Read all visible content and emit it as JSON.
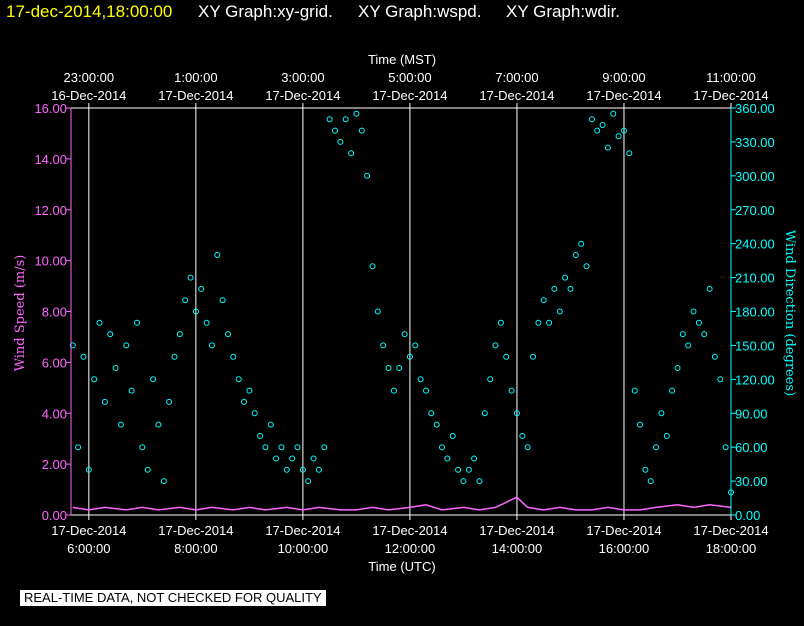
{
  "header": {
    "timestamp": "17-dec-2014,18:00:00",
    "titles": [
      "XY Graph:xy-grid.",
      "XY Graph:wspd.",
      "XY Graph:wdir."
    ]
  },
  "notice": "REAL-TIME DATA, NOT CHECKED FOR QUALITY",
  "chart_data": {
    "type": "scatter",
    "top_axis": {
      "title": "Time (MST)",
      "ticks": [
        {
          "time": "23:00:00",
          "date": "16-Dec-2014"
        },
        {
          "time": "1:00:00",
          "date": "17-Dec-2014"
        },
        {
          "time": "3:00:00",
          "date": "17-Dec-2014"
        },
        {
          "time": "5:00:00",
          "date": "17-Dec-2014"
        },
        {
          "time": "7:00:00",
          "date": "17-Dec-2014"
        },
        {
          "time": "9:00:00",
          "date": "17-Dec-2014"
        },
        {
          "time": "11:00:00",
          "date": "17-Dec-2014"
        }
      ]
    },
    "bottom_axis": {
      "title": "Time (UTC)",
      "ticks": [
        {
          "date": "17-Dec-2014",
          "time": "6:00:00"
        },
        {
          "date": "17-Dec-2014",
          "time": "8:00:00"
        },
        {
          "date": "17-Dec-2014",
          "time": "10:00:00"
        },
        {
          "date": "17-Dec-2014",
          "time": "12:00:00"
        },
        {
          "date": "17-Dec-2014",
          "time": "14:00:00"
        },
        {
          "date": "17-Dec-2014",
          "time": "16:00:00"
        },
        {
          "date": "17-Dec-2014",
          "time": "18:00:00"
        }
      ],
      "xlim": [
        "2014-12-17 05:40 UTC",
        "2014-12-17 18:00 UTC"
      ]
    },
    "left_axis": {
      "title": "Wind Speed (m/s)",
      "ylim": [
        0,
        16
      ],
      "ticks": [
        "0.00",
        "2.00",
        "4.00",
        "6.00",
        "8.00",
        "10.00",
        "12.00",
        "14.00",
        "16.00"
      ],
      "color": "#ff66ff"
    },
    "right_axis": {
      "title": "Wind Direction (degrees)",
      "ylim": [
        0,
        360
      ],
      "ticks": [
        "0.00",
        "30.00",
        "60.00",
        "90.00",
        "120.00",
        "150.00",
        "180.00",
        "210.00",
        "240.00",
        "270.00",
        "300.00",
        "330.00",
        "360.00"
      ],
      "color": "#00ffff"
    },
    "grid": true,
    "series": [
      {
        "color": "#ff66ff",
        "axis": "left",
        "style": "line",
        "points": [
          [
            5.7,
            0.3
          ],
          [
            6.0,
            0.2
          ],
          [
            6.3,
            0.3
          ],
          [
            6.7,
            0.2
          ],
          [
            7.0,
            0.3
          ],
          [
            7.3,
            0.2
          ],
          [
            7.7,
            0.3
          ],
          [
            8.0,
            0.2
          ],
          [
            8.3,
            0.3
          ],
          [
            8.7,
            0.2
          ],
          [
            9.0,
            0.3
          ],
          [
            9.3,
            0.2
          ],
          [
            9.7,
            0.3
          ],
          [
            10.0,
            0.2
          ],
          [
            10.3,
            0.3
          ],
          [
            10.7,
            0.2
          ],
          [
            11.0,
            0.2
          ],
          [
            11.3,
            0.3
          ],
          [
            11.6,
            0.2
          ],
          [
            12.0,
            0.3
          ],
          [
            12.3,
            0.4
          ],
          [
            12.6,
            0.2
          ],
          [
            13.0,
            0.3
          ],
          [
            13.3,
            0.2
          ],
          [
            13.6,
            0.3
          ],
          [
            13.8,
            0.5
          ],
          [
            14.0,
            0.7
          ],
          [
            14.2,
            0.3
          ],
          [
            14.5,
            0.2
          ],
          [
            14.8,
            0.3
          ],
          [
            15.1,
            0.2
          ],
          [
            15.4,
            0.2
          ],
          [
            15.7,
            0.3
          ],
          [
            16.0,
            0.2
          ],
          [
            16.3,
            0.2
          ],
          [
            16.6,
            0.3
          ],
          [
            17.0,
            0.4
          ],
          [
            17.3,
            0.3
          ],
          [
            17.6,
            0.4
          ],
          [
            18.0,
            0.3
          ]
        ]
      },
      {
        "color": "#00ffff",
        "axis": "right",
        "style": "markers",
        "points": [
          [
            5.7,
            150
          ],
          [
            5.8,
            60
          ],
          [
            5.9,
            140
          ],
          [
            6.0,
            40
          ],
          [
            6.1,
            120
          ],
          [
            6.2,
            170
          ],
          [
            6.3,
            100
          ],
          [
            6.4,
            160
          ],
          [
            6.5,
            130
          ],
          [
            6.6,
            80
          ],
          [
            6.7,
            150
          ],
          [
            6.8,
            110
          ],
          [
            6.9,
            170
          ],
          [
            7.0,
            60
          ],
          [
            7.1,
            40
          ],
          [
            7.2,
            120
          ],
          [
            7.3,
            80
          ],
          [
            7.4,
            30
          ],
          [
            7.5,
            100
          ],
          [
            7.6,
            140
          ],
          [
            7.7,
            160
          ],
          [
            7.8,
            190
          ],
          [
            7.9,
            210
          ],
          [
            8.0,
            180
          ],
          [
            8.1,
            200
          ],
          [
            8.2,
            170
          ],
          [
            8.3,
            150
          ],
          [
            8.4,
            230
          ],
          [
            8.5,
            190
          ],
          [
            8.6,
            160
          ],
          [
            8.7,
            140
          ],
          [
            8.8,
            120
          ],
          [
            8.9,
            100
          ],
          [
            9.0,
            110
          ],
          [
            9.1,
            90
          ],
          [
            9.2,
            70
          ],
          [
            9.3,
            60
          ],
          [
            9.4,
            80
          ],
          [
            9.5,
            50
          ],
          [
            9.6,
            60
          ],
          [
            9.7,
            40
          ],
          [
            9.8,
            50
          ],
          [
            9.9,
            60
          ],
          [
            10.0,
            40
          ],
          [
            10.1,
            30
          ],
          [
            10.2,
            50
          ],
          [
            10.3,
            40
          ],
          [
            10.4,
            60
          ],
          [
            10.5,
            350
          ],
          [
            10.6,
            340
          ],
          [
            10.7,
            330
          ],
          [
            10.8,
            350
          ],
          [
            10.9,
            320
          ],
          [
            11.0,
            355
          ],
          [
            11.1,
            340
          ],
          [
            11.2,
            300
          ],
          [
            11.3,
            220
          ],
          [
            11.4,
            180
          ],
          [
            11.5,
            150
          ],
          [
            11.6,
            130
          ],
          [
            11.7,
            110
          ],
          [
            11.8,
            130
          ],
          [
            11.9,
            160
          ],
          [
            12.0,
            140
          ],
          [
            12.1,
            150
          ],
          [
            12.2,
            120
          ],
          [
            12.3,
            110
          ],
          [
            12.4,
            90
          ],
          [
            12.5,
            80
          ],
          [
            12.6,
            60
          ],
          [
            12.7,
            50
          ],
          [
            12.8,
            70
          ],
          [
            12.9,
            40
          ],
          [
            13.0,
            30
          ],
          [
            13.1,
            40
          ],
          [
            13.2,
            50
          ],
          [
            13.3,
            30
          ],
          [
            13.4,
            90
          ],
          [
            13.5,
            120
          ],
          [
            13.6,
            150
          ],
          [
            13.7,
            170
          ],
          [
            13.8,
            140
          ],
          [
            13.9,
            110
          ],
          [
            14.0,
            90
          ],
          [
            14.1,
            70
          ],
          [
            14.2,
            60
          ],
          [
            14.3,
            140
          ],
          [
            14.4,
            170
          ],
          [
            14.5,
            190
          ],
          [
            14.6,
            170
          ],
          [
            14.7,
            200
          ],
          [
            14.8,
            180
          ],
          [
            14.9,
            210
          ],
          [
            15.0,
            200
          ],
          [
            15.1,
            230
          ],
          [
            15.2,
            240
          ],
          [
            15.3,
            220
          ],
          [
            15.4,
            350
          ],
          [
            15.5,
            340
          ],
          [
            15.6,
            345
          ],
          [
            15.7,
            325
          ],
          [
            15.8,
            355
          ],
          [
            15.9,
            335
          ],
          [
            16.0,
            340
          ],
          [
            16.1,
            320
          ],
          [
            16.2,
            110
          ],
          [
            16.3,
            80
          ],
          [
            16.4,
            40
          ],
          [
            16.5,
            30
          ],
          [
            16.6,
            60
          ],
          [
            16.7,
            90
          ],
          [
            16.8,
            70
          ],
          [
            16.9,
            110
          ],
          [
            17.0,
            130
          ],
          [
            17.1,
            160
          ],
          [
            17.2,
            150
          ],
          [
            17.3,
            180
          ],
          [
            17.4,
            170
          ],
          [
            17.5,
            160
          ],
          [
            17.6,
            200
          ],
          [
            17.7,
            140
          ],
          [
            17.8,
            120
          ],
          [
            17.9,
            60
          ],
          [
            18.0,
            20
          ]
        ]
      }
    ]
  }
}
